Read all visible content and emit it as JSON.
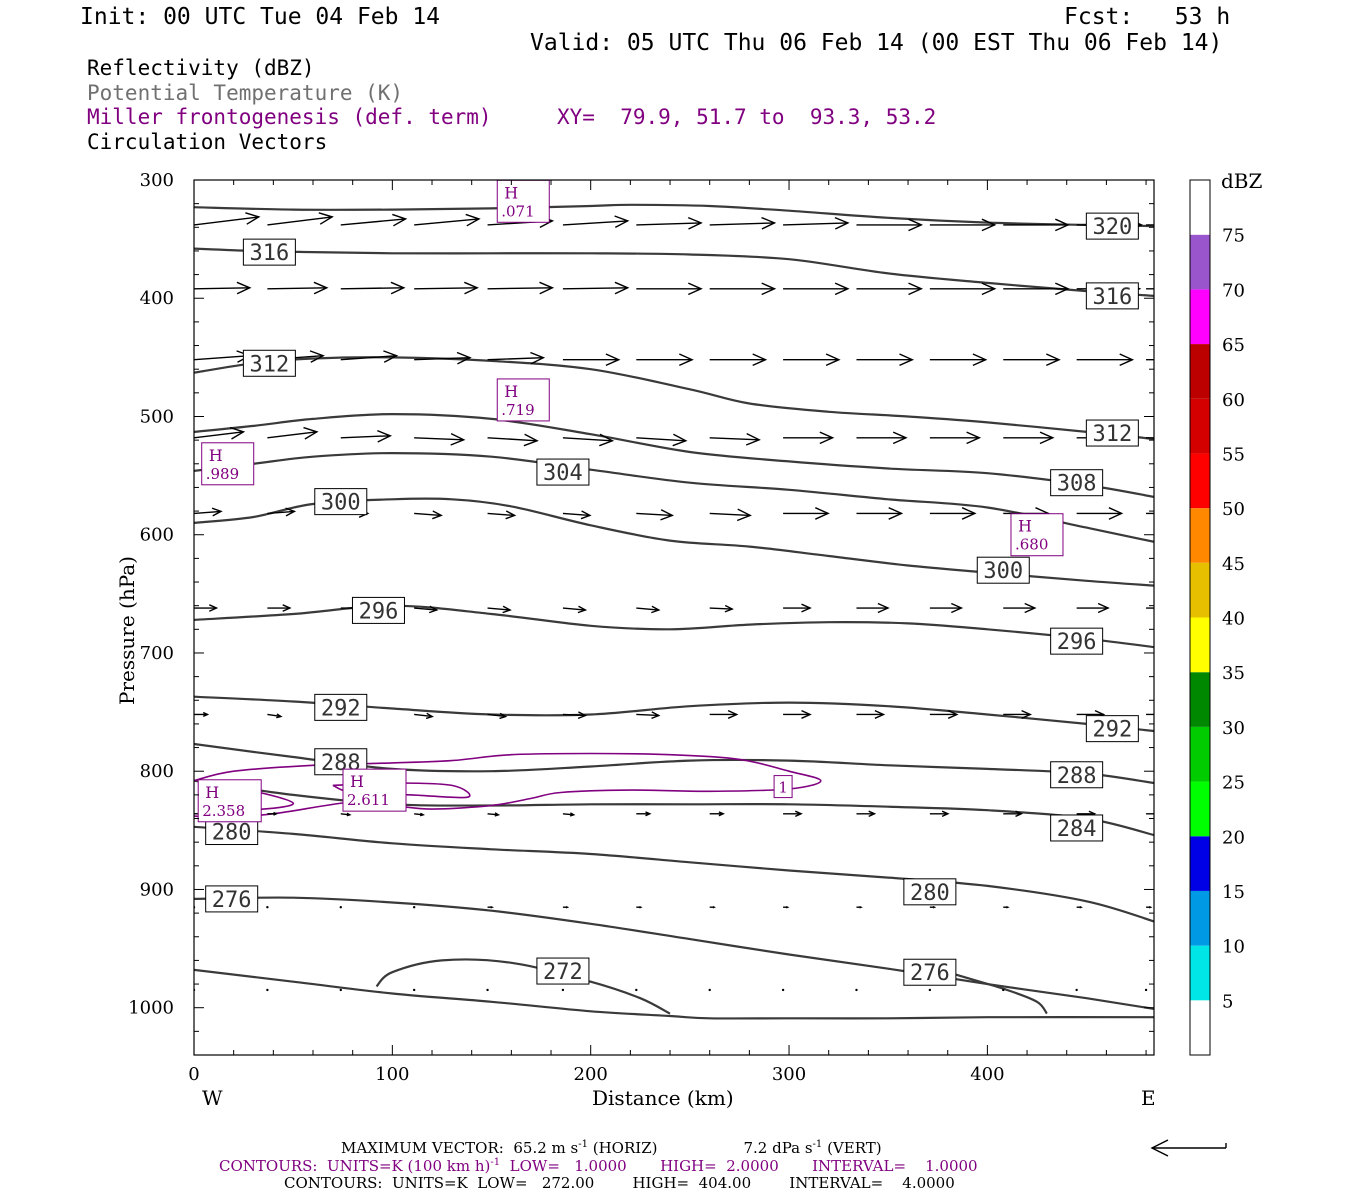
{
  "header": {
    "init": "Init: 00 UTC Tue 04 Feb 14",
    "fcst": "Fcst:   53 h",
    "valid": "Valid: 05 UTC Thu 06 Feb 14 (00 EST Thu 06 Feb 14)"
  },
  "fields": {
    "reflectivity": "Reflectivity (dBZ)",
    "theta": "Potential Temperature (K)",
    "frontogenesis": "Miller frontogenesis (def. term)",
    "xy": "XY=  79.9, 51.7 to  93.3, 53.2",
    "vectors": "Circulation Vectors"
  },
  "colors": {
    "theta_contour": "#3a3a3a",
    "frontogenesis": "#800080",
    "vector": "#000000"
  },
  "chart_data": {
    "type": "line",
    "xlabel": "Distance (km)",
    "ylabel": "Pressure (hPa)",
    "xlim": [
      0,
      484
    ],
    "ylim": [
      1040,
      300
    ],
    "y_reversed": true,
    "xticks": [
      0,
      100,
      200,
      300,
      400
    ],
    "yticks": [
      300,
      400,
      500,
      600,
      700,
      800,
      900,
      1000
    ],
    "x_left_label": "W",
    "x_right_label": "E",
    "theta_contours": [
      {
        "level": 320,
        "x": [
          0,
          50,
          100,
          150,
          200,
          220,
          260,
          300,
          350,
          400,
          450,
          484
        ],
        "p": [
          323,
          325,
          325,
          324,
          322,
          321,
          322,
          326,
          332,
          336,
          338,
          339
        ]
      },
      {
        "level": 316,
        "x": [
          0,
          30,
          60,
          100,
          150,
          200,
          250,
          300,
          350,
          400,
          450,
          484
        ],
        "p": [
          358,
          360,
          361,
          362,
          362,
          362,
          363,
          367,
          379,
          387,
          394,
          398
        ]
      },
      {
        "level": 312,
        "x": [
          0,
          30,
          60,
          100,
          150,
          200,
          250,
          280,
          320,
          360,
          400,
          450,
          484
        ],
        "p": [
          463,
          455,
          451,
          450,
          453,
          460,
          477,
          489,
          496,
          500,
          505,
          513,
          519
        ]
      },
      {
        "level": 308,
        "x": [
          0,
          30,
          60,
          100,
          150,
          200,
          250,
          300,
          350,
          400,
          450,
          484
        ],
        "p": [
          513,
          508,
          502,
          498,
          502,
          515,
          530,
          538,
          544,
          548,
          558,
          568
        ]
      },
      {
        "level": 304,
        "x": [
          0,
          30,
          60,
          100,
          150,
          200,
          250,
          300,
          350,
          400,
          450,
          484
        ],
        "p": [
          546,
          540,
          534,
          531,
          534,
          545,
          556,
          562,
          570,
          577,
          594,
          606
        ]
      },
      {
        "level": 300,
        "x": [
          0,
          30,
          60,
          100,
          130,
          160,
          200,
          240,
          280,
          320,
          360,
          400,
          450,
          484
        ],
        "p": [
          590,
          585,
          574,
          570,
          570,
          576,
          592,
          605,
          610,
          618,
          626,
          632,
          639,
          643
        ]
      },
      {
        "level": 296,
        "x": [
          0,
          50,
          100,
          150,
          200,
          240,
          280,
          320,
          360,
          400,
          450,
          484
        ],
        "p": [
          672,
          667,
          660,
          667,
          677,
          680,
          676,
          674,
          675,
          680,
          688,
          695
        ]
      },
      {
        "level": 292,
        "x": [
          0,
          50,
          100,
          150,
          200,
          250,
          300,
          350,
          400,
          450,
          484
        ],
        "p": [
          737,
          741,
          747,
          752,
          752,
          745,
          742,
          745,
          752,
          760,
          766
        ]
      },
      {
        "level": 288,
        "x": [
          0,
          50,
          100,
          150,
          200,
          250,
          300,
          350,
          400,
          450,
          484
        ],
        "p": [
          777,
          788,
          798,
          800,
          796,
          791,
          791,
          795,
          798,
          802,
          810
        ]
      },
      {
        "level": 284,
        "x": [
          0,
          50,
          100,
          150,
          200,
          250,
          300,
          350,
          400,
          450,
          484
        ],
        "p": [
          808,
          820,
          828,
          829,
          828,
          828,
          828,
          830,
          833,
          840,
          854
        ]
      },
      {
        "level": 280,
        "x": [
          0,
          50,
          100,
          150,
          200,
          250,
          300,
          350,
          400,
          450,
          484
        ],
        "p": [
          847,
          853,
          861,
          866,
          870,
          877,
          884,
          890,
          897,
          910,
          927
        ]
      },
      {
        "level": 276,
        "x": [
          0,
          50,
          100,
          150,
          200,
          250,
          300,
          350,
          400,
          450,
          484
        ],
        "p": [
          908,
          907,
          911,
          918,
          929,
          942,
          955,
          967,
          980,
          992,
          1001
        ]
      },
      {
        "level": 276,
        "x": [
          0,
          50,
          100,
          150,
          200,
          240,
          260,
          300,
          350,
          400,
          484
        ],
        "p": [
          968,
          978,
          988,
          995,
          1003,
          1007,
          1009,
          1009,
          1009,
          1008,
          1008
        ]
      },
      {
        "level": 272,
        "x": [
          92,
          100,
          125,
          160,
          200,
          225,
          240
        ],
        "p": [
          982,
          970,
          960,
          962,
          978,
          992,
          1005
        ]
      },
      {
        "level": 276,
        "x": [
          360,
          390,
          410,
          425,
          430
        ],
        "p": [
          960,
          975,
          985,
          995,
          1005
        ]
      }
    ],
    "theta_labels": [
      {
        "text": "320",
        "x": 463,
        "p": 339
      },
      {
        "text": "316",
        "x": 38,
        "p": 361
      },
      {
        "text": "316",
        "x": 463,
        "p": 398
      },
      {
        "text": "312",
        "x": 38,
        "p": 455
      },
      {
        "text": "312",
        "x": 463,
        "p": 514
      },
      {
        "text": "304",
        "x": 186,
        "p": 547
      },
      {
        "text": "308",
        "x": 445,
        "p": 556
      },
      {
        "text": "300",
        "x": 74,
        "p": 572
      },
      {
        "text": "300",
        "x": 408,
        "p": 630
      },
      {
        "text": "296",
        "x": 93,
        "p": 664
      },
      {
        "text": "296",
        "x": 445,
        "p": 690
      },
      {
        "text": "292",
        "x": 74,
        "p": 746
      },
      {
        "text": "292",
        "x": 463,
        "p": 764
      },
      {
        "text": "288",
        "x": 74,
        "p": 792
      },
      {
        "text": "288",
        "x": 445,
        "p": 803
      },
      {
        "text": "284",
        "x": 445,
        "p": 848
      },
      {
        "text": "280",
        "x": 19,
        "p": 851
      },
      {
        "text": "280",
        "x": 371,
        "p": 902
      },
      {
        "text": "276",
        "x": 19,
        "p": 908
      },
      {
        "text": "272",
        "x": 186,
        "p": 969
      },
      {
        "text": "276",
        "x": 371,
        "p": 970
      }
    ],
    "frontogenesis_contours": [
      {
        "level": 1,
        "x": [
          0,
          20,
          60,
          100,
          130,
          160,
          200,
          240,
          275,
          300,
          316,
          300,
          260,
          220,
          185,
          170,
          150,
          120,
          100,
          80,
          40,
          15,
          0
        ],
        "p": [
          808,
          800,
          795,
          793,
          791,
          786,
          785,
          786,
          790,
          800,
          808,
          815,
          817,
          816,
          818,
          823,
          829,
          832,
          829,
          826,
          836,
          839,
          838
        ]
      },
      {
        "level": 1,
        "x": [
          70,
          100,
          130,
          138,
          110,
          80,
          70
        ],
        "p": [
          812,
          810,
          812,
          822,
          820,
          818,
          812
        ]
      },
      {
        "level": 1,
        "x": [
          10,
          30,
          50,
          35,
          10
        ],
        "p": [
          815,
          817,
          827,
          832,
          832
        ]
      }
    ],
    "frontogenesis_labels": [
      {
        "text": "1",
        "x": 297,
        "p": 813
      }
    ],
    "frontogenesis_maxima": [
      {
        "label": "H",
        "value": ".071",
        "x": 166,
        "p": 318
      },
      {
        "label": "H",
        "value": ".719",
        "x": 166,
        "p": 486
      },
      {
        "label": "H",
        "value": ".989",
        "x": 17,
        "p": 540
      },
      {
        "label": "H",
        "value": ".680",
        "x": 425,
        "p": 600
      },
      {
        "label": "H",
        "value": "2.358",
        "x": 18,
        "p": 825
      },
      {
        "label": "H",
        "value": "2.611",
        "x": 91,
        "p": 816
      }
    ],
    "vector_rows": [
      {
        "p": 338,
        "u": [
          0.72,
          0.72,
          0.72,
          0.72,
          0.72,
          0.72,
          0.72,
          0.72,
          0.72,
          0.72,
          0.72,
          0.72,
          0.72,
          0.72
        ],
        "w": [
          -8,
          -8,
          -6,
          -6,
          -4,
          -4,
          -2,
          -2,
          -2,
          0,
          0,
          0,
          0,
          0
        ]
      },
      {
        "p": 392,
        "u": [
          0.62,
          0.66,
          0.7,
          0.7,
          0.72,
          0.72,
          0.72,
          0.72,
          0.72,
          0.72,
          0.72,
          0.72,
          0.7,
          0.7
        ],
        "w": [
          -1,
          -1,
          -1,
          -1,
          -1,
          -1,
          0,
          0,
          0,
          0,
          0,
          0,
          0,
          0
        ]
      },
      {
        "p": 452,
        "u": [
          0.62,
          0.62,
          0.62,
          0.62,
          0.62,
          0.62,
          0.62,
          0.62,
          0.62,
          0.62,
          0.62,
          0.62,
          0.62,
          0.62
        ],
        "w": [
          -4,
          -4,
          -4,
          -2,
          -2,
          0,
          0,
          0,
          0,
          0,
          0,
          0,
          0,
          0
        ]
      },
      {
        "p": 518,
        "u": [
          0.55,
          0.55,
          0.55,
          0.55,
          0.55,
          0.55,
          0.55,
          0.55,
          0.55,
          0.55,
          0.55,
          0.55,
          0.55,
          0.55
        ],
        "w": [
          -6,
          -6,
          -2,
          2,
          3,
          3,
          3,
          2,
          0,
          0,
          0,
          0,
          0,
          0
        ]
      },
      {
        "p": 582,
        "u": [
          0.3,
          0.3,
          0.3,
          0.3,
          0.3,
          0.3,
          0.4,
          0.45,
          0.5,
          0.5,
          0.5,
          0.5,
          0.5,
          0.5
        ],
        "w": [
          -2,
          -2,
          0,
          2,
          2,
          2,
          2,
          2,
          0,
          0,
          0,
          0,
          0,
          0
        ]
      },
      {
        "p": 662,
        "u": [
          0.25,
          0.25,
          0.25,
          0.25,
          0.25,
          0.25,
          0.25,
          0.25,
          0.3,
          0.35,
          0.35,
          0.35,
          0.35,
          0.35
        ],
        "w": [
          0,
          0,
          0,
          2,
          2,
          2,
          2,
          1,
          0,
          0,
          0,
          0,
          0,
          0
        ]
      },
      {
        "p": 752,
        "u": [
          0.15,
          0.15,
          0.15,
          0.2,
          0.2,
          0.25,
          0.25,
          0.3,
          0.3,
          0.3,
          0.3,
          0.3,
          0.3,
          0.3
        ],
        "w": [
          0,
          2,
          2,
          2,
          2,
          1,
          1,
          0,
          0,
          0,
          0,
          0,
          0,
          0
        ]
      },
      {
        "p": 836,
        "u": [
          0.1,
          0.1,
          0.1,
          0.1,
          0.12,
          0.12,
          0.15,
          0.15,
          0.2,
          0.2,
          0.2,
          0.2,
          0.2,
          0.2
        ],
        "w": [
          0,
          0,
          1,
          1,
          1,
          1,
          0,
          0,
          0,
          0,
          0,
          0,
          0,
          0
        ]
      },
      {
        "p": 915,
        "u": [
          0.03,
          0.03,
          0.03,
          0.03,
          0.05,
          0.05,
          0.05,
          0.05,
          0.05,
          0.05,
          0.05,
          0.05,
          0.05,
          0.05
        ],
        "w": [
          0,
          0,
          0,
          0,
          0,
          0,
          0,
          0,
          0,
          0,
          0,
          0,
          0,
          0
        ]
      },
      {
        "p": 985,
        "u": [
          0.02,
          0.02,
          0.02,
          0.02,
          0.02,
          0.02,
          0.02,
          0.02,
          0.02,
          0.02,
          0.02,
          0.02,
          0.02,
          0.02
        ],
        "w": [
          0,
          0,
          0,
          0,
          0,
          0,
          0,
          0,
          0,
          0,
          0,
          0,
          0,
          0
        ]
      }
    ],
    "vector_x": [
      0,
      37,
      74,
      111,
      148,
      186,
      223,
      260,
      297,
      334,
      371,
      408,
      445,
      480
    ],
    "colorbar": {
      "title": "dBZ",
      "labels": [
        "5",
        "10",
        "15",
        "20",
        "25",
        "30",
        "35",
        "40",
        "45",
        "50",
        "55",
        "60",
        "65",
        "70",
        "75"
      ],
      "colors": [
        "#ffffff",
        "#00e6e6",
        "#0099e6",
        "#0000e6",
        "#00ff00",
        "#00cc00",
        "#008800",
        "#ffff00",
        "#e6bf00",
        "#ff8800",
        "#ff0000",
        "#d40000",
        "#bc0000",
        "#ff00ff",
        "#9955cc",
        "#ffffff"
      ]
    }
  },
  "footer": {
    "max_vector": "MAXIMUM VECTOR:  65.2 m s",
    "max_vector_sup": "-1",
    "max_vector_horiz": " (HORIZ)",
    "max_vector_vert": "7.2 dPa s",
    "max_vector_vert_sup": "-1",
    "max_vector_vert_tail": " (VERT)",
    "contours1": "CONTOURS:  UNITS=K (100 km h)",
    "contours1_sup": "-1",
    "contours1_tail": "  LOW=   1.0000       HIGH=  2.0000       INTERVAL=    1.0000",
    "contours2": "CONTOURS:  UNITS=K  LOW=   272.00        HIGH=  404.00        INTERVAL=    4.0000"
  }
}
